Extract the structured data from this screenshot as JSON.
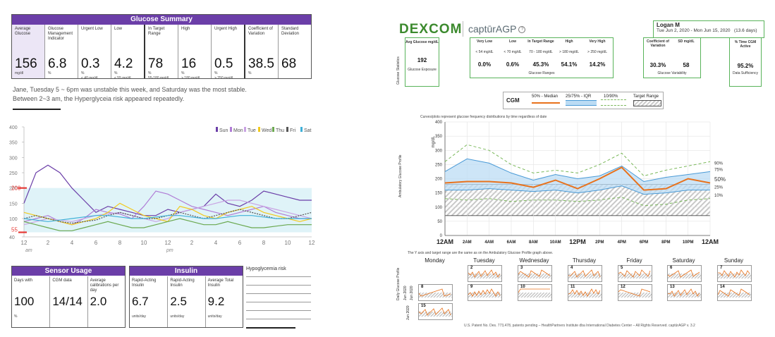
{
  "left": {
    "summary": {
      "title": "Glucose Summary",
      "cells": [
        {
          "label": "Average Glucose",
          "value": "156",
          "unit": "mg/dl",
          "unit2": ""
        },
        {
          "label": "Glucose Management Indicator",
          "value": "6.8",
          "unit": "%",
          "unit2": ""
        },
        {
          "label": "Urgent Low",
          "value": "0.3",
          "unit": "%",
          "unit2": "< 40 mg/dl"
        },
        {
          "label": "Low",
          "value": "4.2",
          "unit": "%",
          "unit2": "< 55 mg/dl"
        },
        {
          "label": "In Target Range",
          "value": "78",
          "unit": "%",
          "unit2": "55-180 mg/dl"
        },
        {
          "label": "High",
          "value": "16",
          "unit": "%",
          "unit2": "> 180 mg/dl"
        },
        {
          "label": "Urgent High",
          "value": "0.5",
          "unit": "%",
          "unit2": "> 250 mg/dl"
        },
        {
          "label": "Coefficient of Variation",
          "value": "38.5",
          "unit": "%",
          "unit2": ""
        },
        {
          "label": "Standard Deviation",
          "value": "68",
          "unit": "",
          "unit2": ""
        }
      ]
    },
    "note_line1": "Jane, Tuesday 5 ~ 6pm was unstable this week, and Saturday was the most stable.",
    "note_line2": "Between 2~3 am, the Hyperglyceia risk appeared repeatedly.",
    "sensor": {
      "title": "Sensor Usage",
      "cells": [
        {
          "label": "Days with",
          "value": "100",
          "unit": "%"
        },
        {
          "label": "CGM data",
          "value": "14/14",
          "unit": ""
        },
        {
          "label": "Average calibrations per day",
          "value": "2.0",
          "unit": ""
        }
      ]
    },
    "insulin": {
      "title": "Insulin",
      "cells": [
        {
          "label": "Rapid-Acting Insulin",
          "value": "6.7",
          "unit": "units/day"
        },
        {
          "label": "Rapid-Acting Insulin",
          "value": "2.5",
          "unit": "units/day"
        },
        {
          "label": "Average Total Insulin",
          "value": "9.2",
          "unit": "units/day"
        }
      ]
    },
    "hypo_title": "Hypoglycemia risk"
  },
  "right": {
    "brand": "DEXCOM",
    "product": "captūrAGP",
    "patient_name": "Logan M",
    "date_range": "Tue Jun 2, 2020 - Mon Jun 15, 2020",
    "days": "(13.6 days)",
    "stats_side_label": "Glucose Statistics",
    "avg_box": {
      "label": "Avg Glucose mg/dL",
      "value": "192",
      "sub": "Glucose Exposure"
    },
    "ranges": [
      {
        "label": "Very Low",
        "range": "< 54 mg/dL",
        "value": "0.0%"
      },
      {
        "label": "Low",
        "range": "< 70 mg/dL",
        "value": "0.6%"
      },
      {
        "label": "In Target Range",
        "range": "70 - 180 mg/dL",
        "value": "45.3%"
      },
      {
        "label": "High",
        "range": "> 180 mg/dL",
        "value": "54.1%"
      },
      {
        "label": "Very High",
        "range": "> 250 mg/dL",
        "value": "14.2%"
      }
    ],
    "ranges_sub": "Glucose Ranges",
    "variability": [
      {
        "label": "Coefficient of Variation",
        "value": "30.3%"
      },
      {
        "label": "SD mg/dL",
        "value": "58"
      }
    ],
    "variability_sub": "Glucose Variability",
    "active": {
      "label": "% Time CGM Active",
      "value": "95.2%",
      "sub": "Data Sufficiency"
    },
    "legend": {
      "cgm": "CGM",
      "median": "50% - Median",
      "iqr": "25/75% - IQR",
      "outer": "10/90%",
      "target": "Target Range"
    },
    "agp_caption": "Curves/plots represent glucose frequency distributions by time regardless of date",
    "agp_side_label": "Ambulatory Glucose Profile",
    "agp_ylabel": "mg/dL",
    "daily_caption": "The Y axis and target range are the same as on the Ambulatory Glucose Profile graph above.",
    "daily_side_label": "Daily Glucose Profile",
    "daily_month_labels": [
      "Jun 2020",
      "Jun 2020",
      "Jun 2020"
    ],
    "weekdays": [
      "Monday",
      "Tuesday",
      "Wednesday",
      "Thursday",
      "Friday",
      "Saturday",
      "Sunday"
    ],
    "footer": "U.S. Patent No. Des. 773,478, patents pending – HealthPartners Institute dba International Diabetes Center – All Rights Reserved. captūrAGP v. 3.2"
  },
  "colors": {
    "purple": "#6b3ea8",
    "target_band": "#dff3f8",
    "dexcom_green": "#3c8a2e",
    "agp_median": "#e8721c",
    "agp_iqr_fill": "#bcdcf4",
    "agp_iqr_line": "#4a9ad6",
    "agp_outer": "#7ab85a"
  },
  "chart_data": [
    {
      "type": "line",
      "title": "",
      "x_tick_labels": [
        "12",
        "2",
        "4",
        "6",
        "8",
        "10",
        "12",
        "2",
        "4",
        "6",
        "8",
        "10",
        "12"
      ],
      "x_period_labels": [
        "am",
        "pm"
      ],
      "y_tick_labels": [
        "40",
        "100",
        "150",
        "200",
        "250",
        "300",
        "350",
        "400"
      ],
      "ylim": [
        40,
        400
      ],
      "target_range": [
        55,
        200
      ],
      "markers": [
        {
          "label": "200",
          "value": 200
        },
        {
          "label": "55",
          "value": 55
        }
      ],
      "legend_position": "top-right",
      "series": [
        {
          "name": "Sun",
          "color": "#6b3ea8",
          "x": [
            0,
            1,
            2,
            3,
            4,
            5,
            6,
            7,
            8,
            9,
            10,
            11,
            12,
            13,
            14,
            15,
            16,
            17,
            18,
            19,
            20,
            21,
            22,
            23,
            24
          ],
          "values": [
            150,
            250,
            275,
            250,
            200,
            160,
            120,
            140,
            130,
            120,
            110,
            110,
            130,
            120,
            130,
            140,
            180,
            150,
            140,
            160,
            190,
            180,
            170,
            160,
            160
          ]
        },
        {
          "name": "Mon",
          "color": "#b07cd6",
          "x": [
            0,
            1,
            2,
            3,
            4,
            5,
            6,
            7,
            8,
            9,
            10,
            11,
            12,
            13,
            14,
            15,
            16,
            17,
            18,
            19,
            20,
            21,
            22,
            23,
            24
          ],
          "values": [
            90,
            100,
            110,
            90,
            80,
            100,
            130,
            120,
            115,
            100,
            140,
            190,
            180,
            160,
            140,
            130,
            120,
            110,
            120,
            130,
            140,
            120,
            110,
            100,
            100
          ]
        },
        {
          "name": "Tue",
          "color": "#c9a3e3",
          "x": [
            0,
            1,
            2,
            3,
            4,
            5,
            6,
            7,
            8,
            9,
            10,
            11,
            12,
            13,
            14,
            15,
            16,
            17,
            18,
            19,
            20,
            21,
            22,
            23,
            24
          ],
          "values": [
            80,
            90,
            100,
            95,
            90,
            100,
            110,
            115,
            120,
            110,
            100,
            90,
            100,
            120,
            130,
            140,
            150,
            160,
            160,
            150,
            140,
            130,
            120,
            110,
            100
          ]
        },
        {
          "name": "Wed",
          "color": "#f2c91c",
          "x": [
            0,
            1,
            2,
            3,
            4,
            5,
            6,
            7,
            8,
            9,
            10,
            11,
            12,
            13,
            14,
            15,
            16,
            17,
            18,
            19,
            20,
            21,
            22,
            23,
            24
          ],
          "values": [
            120,
            110,
            100,
            90,
            80,
            90,
            100,
            120,
            150,
            130,
            110,
            100,
            90,
            140,
            130,
            110,
            100,
            120,
            130,
            140,
            120,
            110,
            100,
            90,
            100
          ]
        },
        {
          "name": "Thu",
          "color": "#6aa84f",
          "x": [
            0,
            1,
            2,
            3,
            4,
            5,
            6,
            7,
            8,
            9,
            10,
            11,
            12,
            13,
            14,
            15,
            16,
            17,
            18,
            19,
            20,
            21,
            22,
            23,
            24
          ],
          "values": [
            90,
            80,
            70,
            60,
            60,
            70,
            80,
            90,
            80,
            70,
            70,
            80,
            90,
            100,
            90,
            80,
            80,
            90,
            80,
            70,
            70,
            75,
            80,
            80,
            80
          ]
        },
        {
          "name": "Fri",
          "color": "#555555",
          "x": [
            0,
            1,
            2,
            3,
            4,
            5,
            6,
            7,
            8,
            9,
            10,
            11,
            12,
            13,
            14,
            15,
            16,
            17,
            18,
            19,
            20,
            21,
            22,
            23,
            24
          ],
          "values": [
            100,
            110,
            100,
            90,
            85,
            90,
            95,
            110,
            120,
            110,
            100,
            100,
            110,
            120,
            110,
            100,
            110,
            120,
            130,
            120,
            110,
            100,
            100,
            110,
            120
          ]
        },
        {
          "name": "Sat",
          "color": "#3fb0d8",
          "x": [
            0,
            1,
            2,
            3,
            4,
            5,
            6,
            7,
            8,
            9,
            10,
            11,
            12,
            13,
            14,
            15,
            16,
            17,
            18,
            19,
            20,
            21,
            22,
            23,
            24
          ],
          "values": [
            100,
            95,
            90,
            95,
            100,
            105,
            110,
            110,
            105,
            100,
            100,
            105,
            110,
            110,
            105,
            100,
            100,
            105,
            110,
            110,
            105,
            100,
            100,
            100,
            100
          ]
        }
      ]
    },
    {
      "type": "area",
      "title": "",
      "x_tick_labels": [
        "12AM",
        "2AM",
        "4AM",
        "6AM",
        "8AM",
        "10AM",
        "12PM",
        "2PM",
        "4PM",
        "6PM",
        "8PM",
        "10PM",
        "12AM"
      ],
      "y_tick_labels": [
        "0",
        "50",
        "100",
        "150",
        "200",
        "250",
        "300",
        "350",
        "400"
      ],
      "ylim": [
        0,
        400
      ],
      "target_range": [
        70,
        180
      ],
      "percentile_labels": [
        "90%",
        "75%",
        "50%",
        "25%",
        "10%"
      ],
      "x": [
        0,
        2,
        4,
        6,
        8,
        10,
        12,
        14,
        16,
        18,
        20,
        22,
        24
      ],
      "series": [
        {
          "name": "90%",
          "values": [
            260,
            320,
            300,
            250,
            220,
            230,
            220,
            250,
            290,
            210,
            230,
            245,
            260
          ]
        },
        {
          "name": "75%",
          "values": [
            225,
            270,
            255,
            220,
            195,
            215,
            200,
            210,
            245,
            190,
            205,
            215,
            225
          ]
        },
        {
          "name": "50%",
          "values": [
            185,
            190,
            190,
            185,
            170,
            195,
            165,
            200,
            240,
            160,
            165,
            200,
            185
          ]
        },
        {
          "name": "25%",
          "values": [
            160,
            160,
            165,
            160,
            155,
            160,
            150,
            160,
            175,
            145,
            150,
            160,
            160
          ]
        },
        {
          "name": "10%",
          "values": [
            130,
            125,
            130,
            120,
            125,
            125,
            120,
            125,
            135,
            105,
            110,
            125,
            130
          ]
        }
      ]
    }
  ]
}
